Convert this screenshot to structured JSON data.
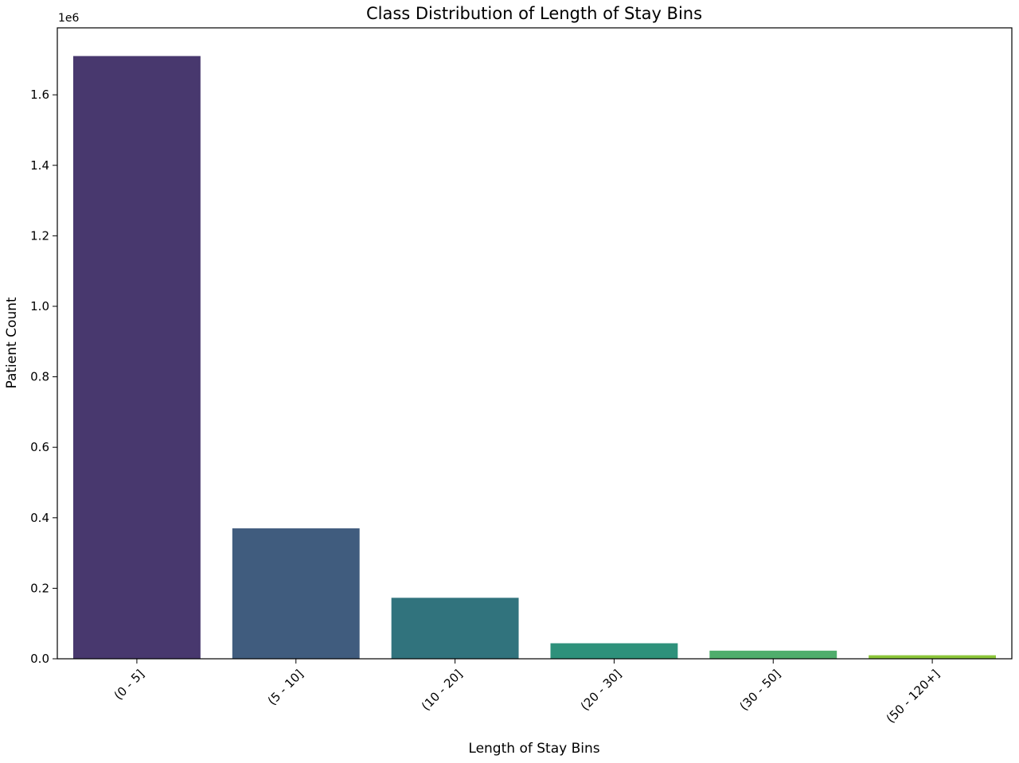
{
  "chart_data": {
    "type": "bar",
    "title": "Class Distribution of Length of Stay Bins",
    "xlabel": "Length of Stay Bins",
    "ylabel": "Patient Count",
    "y_offset_label": "1e6",
    "categories": [
      "(0 - 5]",
      "(5 - 10]",
      "(10 - 20]",
      "(20 - 30]",
      "(30 - 50]",
      "(50 - 120+]"
    ],
    "values": [
      1710000,
      370000,
      173000,
      44000,
      23000,
      10000
    ],
    "colors": [
      "#48386e",
      "#405c7e",
      "#31737d",
      "#2e917b",
      "#4fad6c",
      "#8cc63a"
    ],
    "ylim": [
      0,
      1790000
    ],
    "yticks": [
      0,
      200000,
      400000,
      600000,
      800000,
      1000000,
      1200000,
      1400000,
      1600000
    ],
    "ytick_labels": [
      "0.0",
      "0.2",
      "0.4",
      "0.6",
      "0.8",
      "1.0",
      "1.2",
      "1.4",
      "1.6"
    ],
    "grid": false,
    "legend": "none"
  }
}
